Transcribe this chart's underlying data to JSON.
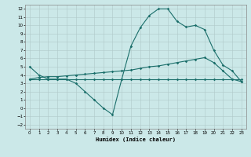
{
  "xlabel": "Humidex (Indice chaleur)",
  "background_color": "#cbe8e8",
  "grid_color": "#b0c8c8",
  "line_color": "#1a6e6a",
  "xlim": [
    -0.5,
    23.5
  ],
  "ylim": [
    -2.5,
    12.5
  ],
  "xticks": [
    0,
    1,
    2,
    3,
    4,
    5,
    6,
    7,
    8,
    9,
    10,
    11,
    12,
    13,
    14,
    15,
    16,
    17,
    18,
    19,
    20,
    21,
    22,
    23
  ],
  "yticks": [
    -2,
    -1,
    0,
    1,
    2,
    3,
    4,
    5,
    6,
    7,
    8,
    9,
    10,
    11,
    12
  ],
  "line1_x": [
    0,
    1,
    2,
    3,
    4,
    5,
    6,
    7,
    8,
    9,
    10,
    11,
    12,
    13,
    14,
    15,
    16,
    17,
    18,
    19,
    20,
    21,
    22,
    23
  ],
  "line1_y": [
    5,
    4,
    3.5,
    3.5,
    3.5,
    3.0,
    2,
    1,
    0,
    -0.8,
    3.5,
    7.5,
    9.7,
    11.2,
    12,
    12,
    10.5,
    9.8,
    10,
    9.5,
    7,
    5.2,
    4.5,
    3.2
  ],
  "line2_x": [
    0,
    1,
    2,
    3,
    4,
    5,
    6,
    7,
    8,
    9,
    10,
    11,
    12,
    13,
    14,
    15,
    16,
    17,
    18,
    19,
    20,
    21,
    22,
    23
  ],
  "line2_y": [
    3.5,
    3.5,
    3.5,
    3.5,
    3.5,
    3.5,
    3.5,
    3.5,
    3.5,
    3.5,
    3.5,
    3.5,
    3.5,
    3.5,
    3.5,
    3.5,
    3.5,
    3.5,
    3.5,
    3.5,
    3.5,
    3.5,
    3.5,
    3.5
  ],
  "line3_x": [
    0,
    1,
    2,
    3,
    4,
    5,
    6,
    7,
    8,
    9,
    10,
    11,
    12,
    13,
    14,
    15,
    16,
    17,
    18,
    19,
    20,
    21,
    22,
    23
  ],
  "line3_y": [
    3.5,
    3.7,
    3.8,
    3.8,
    3.9,
    4.0,
    4.1,
    4.2,
    4.3,
    4.4,
    4.5,
    4.6,
    4.8,
    5.0,
    5.1,
    5.3,
    5.5,
    5.7,
    5.9,
    6.1,
    5.5,
    4.5,
    3.5,
    3.2
  ]
}
